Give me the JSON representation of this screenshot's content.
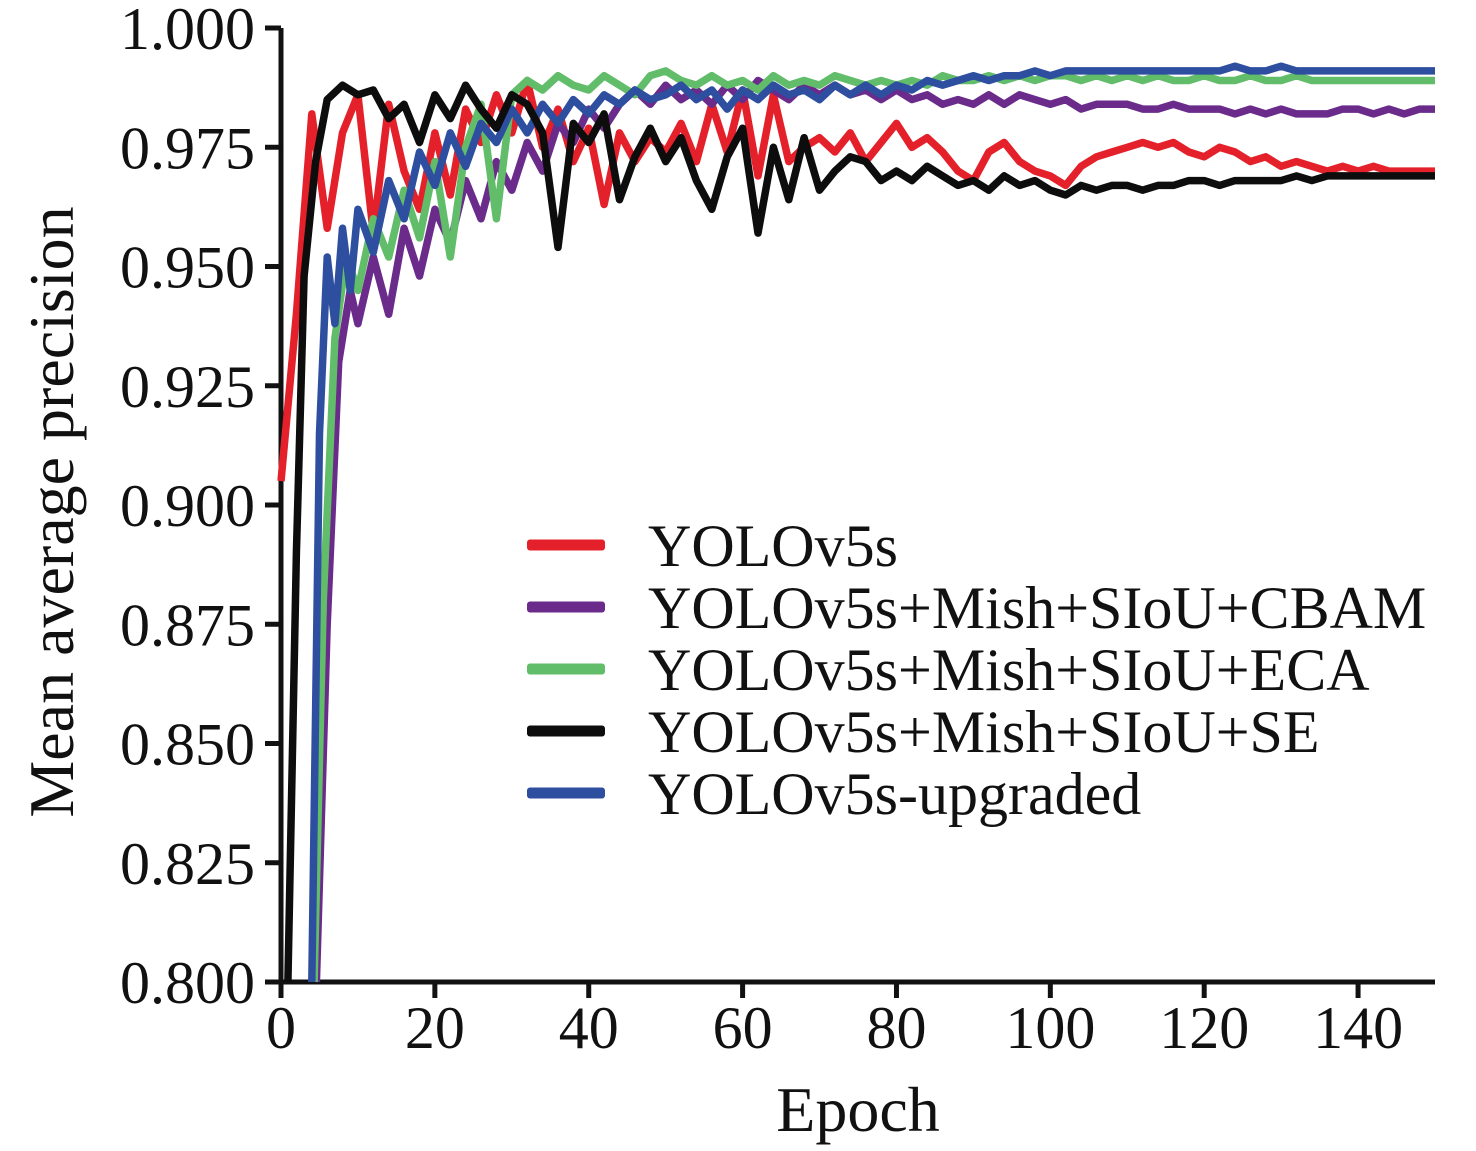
{
  "chart_data": {
    "type": "line",
    "title": "",
    "xlabel": "Epoch",
    "ylabel": "Mean average precision",
    "xlim": [
      0,
      150
    ],
    "ylim": [
      0.8,
      1.0
    ],
    "grid": false,
    "legend_position": "inside center-left",
    "x_ticks": [
      0,
      20,
      40,
      60,
      80,
      100,
      120,
      140
    ],
    "x_tick_labels": [
      "0",
      "20",
      "40",
      "60",
      "80",
      "100",
      "120",
      "140"
    ],
    "y_ticks": [
      1.0,
      0.975,
      0.95,
      0.925,
      0.9,
      0.875,
      0.85,
      0.825,
      0.8
    ],
    "y_tick_labels": [
      "1.000",
      "0.975",
      "0.950",
      "0.925",
      "0.900",
      "0.875",
      "0.850",
      "0.825",
      "0.800"
    ],
    "axis_color": "#111111",
    "series": [
      {
        "name": "YOLOv5s",
        "color": "#e4212a",
        "z": 1,
        "x": [
          0,
          2,
          4,
          6,
          8,
          10,
          12,
          14,
          16,
          18,
          20,
          22,
          24,
          26,
          28,
          30,
          32,
          34,
          36,
          38,
          40,
          42,
          44,
          46,
          48,
          50,
          52,
          54,
          56,
          58,
          60,
          62,
          64,
          66,
          68,
          70,
          72,
          74,
          76,
          78,
          80,
          82,
          84,
          86,
          88,
          90,
          92,
          94,
          96,
          98,
          100,
          102,
          104,
          106,
          108,
          110,
          112,
          114,
          116,
          118,
          120,
          122,
          124,
          126,
          128,
          130,
          132,
          134,
          136,
          138,
          140,
          142,
          144,
          146,
          148,
          150
        ],
        "y": [
          0.905,
          0.94,
          0.982,
          0.958,
          0.978,
          0.986,
          0.957,
          0.984,
          0.97,
          0.962,
          0.978,
          0.965,
          0.983,
          0.976,
          0.986,
          0.978,
          0.989,
          0.975,
          0.983,
          0.972,
          0.979,
          0.963,
          0.978,
          0.972,
          0.977,
          0.974,
          0.98,
          0.972,
          0.984,
          0.974,
          0.987,
          0.969,
          0.986,
          0.972,
          0.975,
          0.977,
          0.974,
          0.978,
          0.972,
          0.976,
          0.98,
          0.975,
          0.977,
          0.974,
          0.97,
          0.968,
          0.974,
          0.976,
          0.972,
          0.97,
          0.969,
          0.967,
          0.971,
          0.973,
          0.974,
          0.975,
          0.976,
          0.975,
          0.976,
          0.974,
          0.973,
          0.975,
          0.974,
          0.972,
          0.973,
          0.971,
          0.972,
          0.971,
          0.97,
          0.971,
          0.97,
          0.971,
          0.97,
          0.97,
          0.97,
          0.97
        ]
      },
      {
        "name": "YOLOv5s+Mish+SIoU+CBAM",
        "color": "#6a2b8a",
        "z": 2,
        "x": [
          4.6,
          6,
          7.5,
          9,
          10,
          12,
          14,
          16,
          18,
          20,
          22,
          24,
          26,
          28,
          30,
          32,
          34,
          36,
          38,
          40,
          42,
          44,
          46,
          48,
          50,
          52,
          54,
          56,
          58,
          60,
          62,
          64,
          66,
          68,
          70,
          72,
          74,
          76,
          78,
          80,
          82,
          84,
          86,
          88,
          90,
          92,
          94,
          96,
          98,
          100,
          102,
          104,
          106,
          108,
          110,
          112,
          114,
          116,
          118,
          120,
          122,
          124,
          126,
          128,
          130,
          132,
          134,
          136,
          138,
          140,
          142,
          144,
          146,
          148,
          150
        ],
        "y": [
          0.8,
          0.875,
          0.93,
          0.945,
          0.938,
          0.952,
          0.94,
          0.958,
          0.948,
          0.962,
          0.955,
          0.968,
          0.96,
          0.972,
          0.966,
          0.976,
          0.97,
          0.98,
          0.976,
          0.983,
          0.979,
          0.984,
          0.987,
          0.984,
          0.988,
          0.985,
          0.987,
          0.984,
          0.988,
          0.985,
          0.989,
          0.987,
          0.985,
          0.988,
          0.986,
          0.988,
          0.986,
          0.987,
          0.985,
          0.987,
          0.985,
          0.986,
          0.984,
          0.985,
          0.984,
          0.986,
          0.984,
          0.986,
          0.985,
          0.984,
          0.985,
          0.983,
          0.984,
          0.984,
          0.984,
          0.983,
          0.983,
          0.984,
          0.983,
          0.983,
          0.983,
          0.982,
          0.983,
          0.982,
          0.983,
          0.982,
          0.982,
          0.982,
          0.983,
          0.983,
          0.982,
          0.983,
          0.982,
          0.983,
          0.983
        ]
      },
      {
        "name": "YOLOv5s+Mish+SIoU+ECA",
        "color": "#62bd6a",
        "z": 3,
        "x": [
          4.3,
          5.5,
          7,
          8.5,
          10,
          12,
          14,
          16,
          18,
          20,
          22,
          24,
          26,
          28,
          30,
          32,
          34,
          36,
          38,
          40,
          42,
          44,
          46,
          48,
          50,
          52,
          54,
          56,
          58,
          60,
          62,
          64,
          66,
          68,
          70,
          72,
          74,
          76,
          78,
          80,
          82,
          84,
          86,
          88,
          90,
          92,
          94,
          96,
          98,
          100,
          102,
          104,
          106,
          108,
          110,
          112,
          114,
          116,
          118,
          120,
          122,
          124,
          126,
          128,
          130,
          132,
          134,
          136,
          138,
          140,
          142,
          144,
          146,
          148,
          150
        ],
        "y": [
          0.8,
          0.88,
          0.935,
          0.952,
          0.945,
          0.96,
          0.952,
          0.966,
          0.956,
          0.972,
          0.952,
          0.975,
          0.984,
          0.96,
          0.986,
          0.989,
          0.987,
          0.99,
          0.988,
          0.987,
          0.99,
          0.988,
          0.986,
          0.99,
          0.991,
          0.989,
          0.988,
          0.99,
          0.988,
          0.989,
          0.987,
          0.99,
          0.988,
          0.989,
          0.988,
          0.99,
          0.989,
          0.988,
          0.989,
          0.988,
          0.989,
          0.988,
          0.99,
          0.989,
          0.989,
          0.99,
          0.989,
          0.99,
          0.989,
          0.99,
          0.99,
          0.989,
          0.99,
          0.989,
          0.99,
          0.989,
          0.99,
          0.989,
          0.989,
          0.99,
          0.989,
          0.989,
          0.99,
          0.989,
          0.989,
          0.99,
          0.989,
          0.989,
          0.989,
          0.989,
          0.989,
          0.989,
          0.989,
          0.989,
          0.989
        ]
      },
      {
        "name": "YOLOv5s+Mish+SIoU+SE",
        "color": "#0d0d0d",
        "z": 5,
        "x": [
          0.9,
          2,
          3,
          4.5,
          6,
          8,
          10,
          12,
          14,
          16,
          18,
          20,
          22,
          24,
          26,
          28,
          30,
          32,
          34,
          36,
          38,
          40,
          42,
          44,
          46,
          48,
          50,
          52,
          54,
          56,
          58,
          60,
          62,
          64,
          66,
          68,
          70,
          72,
          74,
          76,
          78,
          80,
          82,
          84,
          86,
          88,
          90,
          92,
          94,
          96,
          98,
          100,
          102,
          104,
          106,
          108,
          110,
          112,
          114,
          116,
          118,
          120,
          122,
          124,
          126,
          128,
          130,
          132,
          134,
          136,
          138,
          140,
          142,
          144,
          146,
          148,
          150
        ],
        "y": [
          0.8,
          0.89,
          0.948,
          0.972,
          0.985,
          0.988,
          0.986,
          0.987,
          0.981,
          0.984,
          0.976,
          0.986,
          0.981,
          0.988,
          0.983,
          0.979,
          0.986,
          0.984,
          0.978,
          0.954,
          0.98,
          0.976,
          0.982,
          0.964,
          0.973,
          0.979,
          0.972,
          0.977,
          0.968,
          0.962,
          0.973,
          0.979,
          0.957,
          0.975,
          0.964,
          0.977,
          0.966,
          0.97,
          0.973,
          0.972,
          0.968,
          0.97,
          0.968,
          0.971,
          0.969,
          0.967,
          0.968,
          0.966,
          0.969,
          0.967,
          0.968,
          0.966,
          0.965,
          0.967,
          0.966,
          0.967,
          0.967,
          0.966,
          0.967,
          0.967,
          0.968,
          0.968,
          0.967,
          0.968,
          0.968,
          0.968,
          0.968,
          0.969,
          0.968,
          0.969,
          0.969,
          0.969,
          0.969,
          0.969,
          0.969,
          0.969,
          0.969
        ]
      },
      {
        "name": "YOLOv5s-upgraded",
        "color": "#2e4e9f",
        "z": 4,
        "x": [
          4,
          5,
          6,
          7,
          8,
          9,
          10,
          12,
          14,
          16,
          18,
          20,
          22,
          24,
          26,
          28,
          30,
          32,
          34,
          36,
          38,
          40,
          42,
          44,
          46,
          48,
          50,
          52,
          54,
          56,
          58,
          60,
          62,
          64,
          66,
          68,
          70,
          72,
          74,
          76,
          78,
          80,
          82,
          84,
          86,
          88,
          90,
          92,
          94,
          96,
          98,
          100,
          102,
          104,
          106,
          108,
          110,
          112,
          114,
          116,
          118,
          120,
          122,
          124,
          126,
          128,
          130,
          132,
          134,
          136,
          138,
          140,
          142,
          144,
          146,
          148,
          150
        ],
        "y": [
          0.8,
          0.915,
          0.952,
          0.938,
          0.958,
          0.945,
          0.962,
          0.953,
          0.968,
          0.96,
          0.974,
          0.967,
          0.978,
          0.971,
          0.98,
          0.976,
          0.983,
          0.978,
          0.984,
          0.98,
          0.985,
          0.982,
          0.986,
          0.984,
          0.987,
          0.985,
          0.986,
          0.988,
          0.985,
          0.987,
          0.983,
          0.987,
          0.985,
          0.988,
          0.986,
          0.987,
          0.985,
          0.988,
          0.986,
          0.988,
          0.986,
          0.988,
          0.987,
          0.989,
          0.988,
          0.989,
          0.99,
          0.989,
          0.99,
          0.99,
          0.991,
          0.99,
          0.991,
          0.991,
          0.991,
          0.991,
          0.991,
          0.991,
          0.991,
          0.991,
          0.991,
          0.991,
          0.991,
          0.992,
          0.991,
          0.991,
          0.992,
          0.991,
          0.991,
          0.991,
          0.991,
          0.991,
          0.991,
          0.991,
          0.991,
          0.991,
          0.991
        ]
      }
    ]
  }
}
